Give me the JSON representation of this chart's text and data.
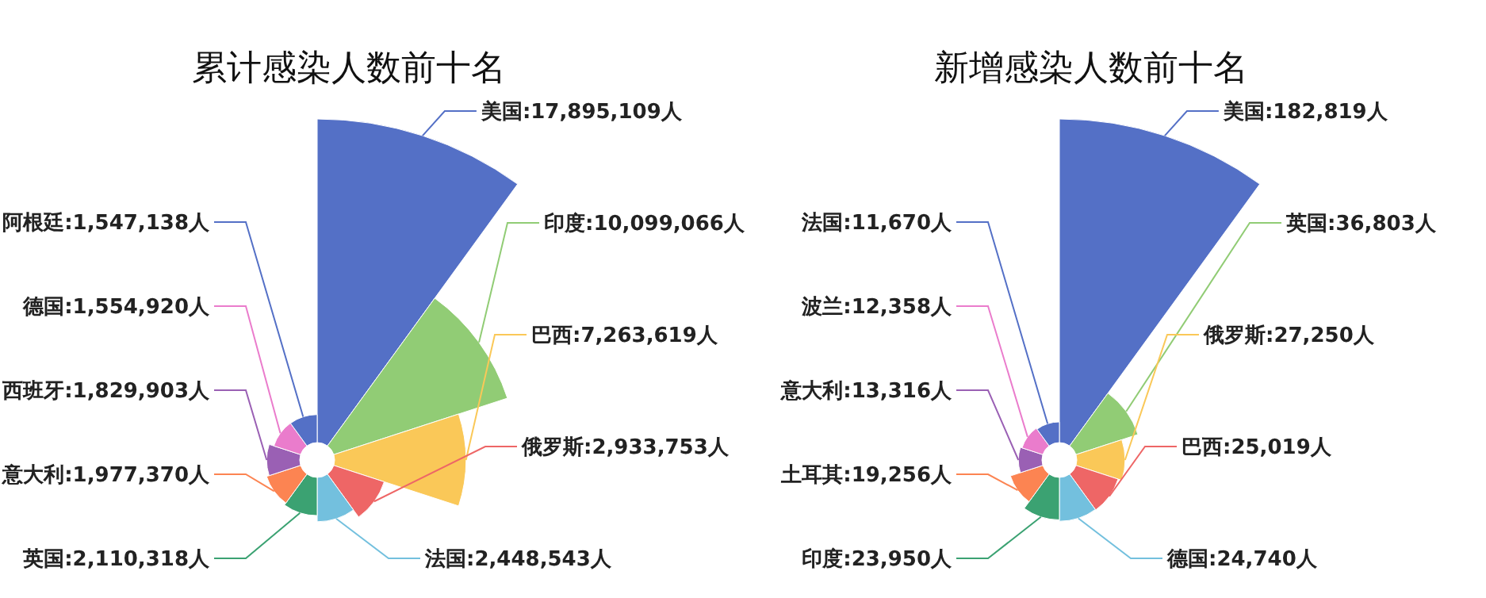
{
  "chart_data": [
    {
      "type": "other",
      "title": "累计感染人数前十名",
      "categories": [
        "美国",
        "印度",
        "巴西",
        "俄罗斯",
        "法国",
        "英国",
        "意大利",
        "西班牙",
        "德国",
        "阿根廷"
      ],
      "values": [
        17895109,
        10099066,
        7263619,
        2933753,
        2448543,
        2110318,
        1977370,
        1829903,
        1554920,
        1547138
      ],
      "value_labels": [
        ":17,895,109人",
        ":10,099,066人",
        ":7,263,619人",
        ":2,933,753人",
        ":2,448,543人",
        ":2,110,318人",
        ":1,977,370人",
        ":1,829,903人",
        ":1,554,920人",
        ":1,547,138人"
      ],
      "colors": [
        "#5470c6",
        "#91cc75",
        "#fac858",
        "#ee6666",
        "#73c0de",
        "#3ba272",
        "#fc8452",
        "#9a60b4",
        "#ea7ccc",
        "#5470c6"
      ]
    },
    {
      "type": "other",
      "title": "新增感染人数前十名",
      "categories": [
        "美国",
        "英国",
        "俄罗斯",
        "巴西",
        "德国",
        "印度",
        "土耳其",
        "意大利",
        "波兰",
        "法国"
      ],
      "values": [
        182819,
        36803,
        27250,
        25019,
        24740,
        23950,
        19256,
        13316,
        12358,
        11670
      ],
      "value_labels": [
        ":182,819人",
        ":36,803人",
        ":27,250人",
        ":25,019人",
        ":24,740人",
        ":23,950人",
        ":19,256人",
        ":13,316人",
        ":12,358人",
        ":11,670人"
      ],
      "colors": [
        "#5470c6",
        "#91cc75",
        "#fac858",
        "#ee6666",
        "#73c0de",
        "#3ba272",
        "#fc8452",
        "#9a60b4",
        "#ea7ccc",
        "#5470c6"
      ]
    }
  ]
}
